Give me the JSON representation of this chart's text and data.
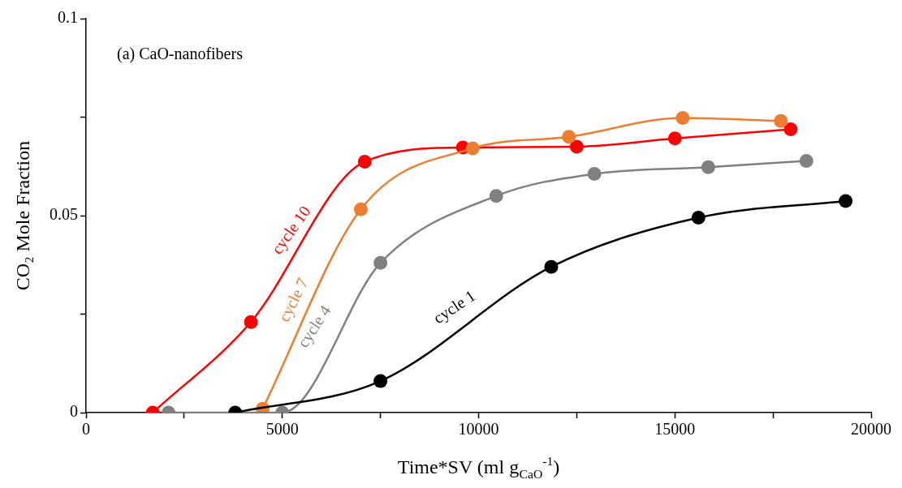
{
  "chart_data": {
    "type": "line",
    "title": "(a) CaO-nanofibers",
    "xlabel": "Time*SV (ml g$_{CaO}$$^{-1}$)",
    "ylabel": "CO₂ Mole Fraction",
    "xlim": [
      0,
      20000
    ],
    "xticks": [
      0,
      {
        "value": 2500,
        "label": null
      },
      5000,
      {
        "value": 7500,
        "label": null
      },
      10000,
      {
        "value": 12500,
        "label": null
      },
      15000,
      {
        "value": 17500,
        "label": null
      },
      20000
    ],
    "ylim": [
      0,
      0.1
    ],
    "yticks": [
      0,
      {
        "value": 0.025,
        "label": null
      },
      0.05,
      {
        "value": 0.075,
        "label": null
      },
      0.1
    ],
    "grid": false,
    "legend": false,
    "marker": "circle",
    "line_style": "solid",
    "series": [
      {
        "name": "cycle 1",
        "color": "#000000",
        "x": [
          3800,
          7500,
          11850,
          15600,
          19350
        ],
        "values": [
          0,
          0.008,
          0.037,
          0.0495,
          0.0537
        ]
      },
      {
        "name": "cycle 4",
        "color": "#808080",
        "x": [
          2100,
          5000,
          7500,
          10450,
          12950,
          15850,
          18350
        ],
        "values": [
          0,
          0,
          0.038,
          0.055,
          0.0606,
          0.0623,
          0.0639
        ]
      },
      {
        "name": "cycle 7",
        "color": "#ed7d31",
        "x": [
          4500,
          7000,
          9850,
          12300,
          15200,
          17700
        ],
        "values": [
          0.001,
          0.0516,
          0.0671,
          0.07,
          0.0748,
          0.074
        ]
      },
      {
        "name": "cycle 10",
        "color": "#ff0000",
        "x": [
          1700,
          4200,
          7100,
          9600,
          12500,
          15000,
          17950
        ],
        "values": [
          0,
          0.023,
          0.0637,
          0.0673,
          0.0675,
          0.0696,
          0.0719
        ]
      }
    ]
  }
}
